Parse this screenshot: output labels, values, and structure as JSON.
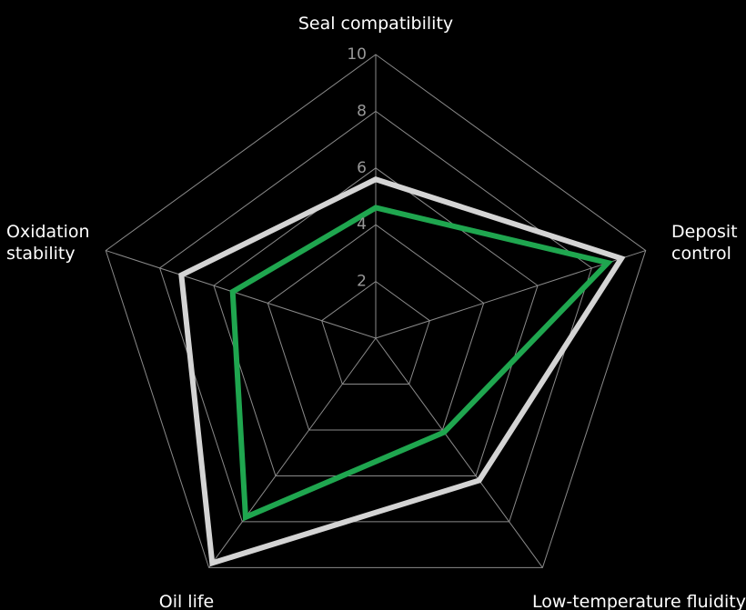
{
  "chart_data": {
    "type": "radar",
    "categories": [
      "Seal compatibility",
      "Deposit control",
      "Low-temperature fluidity",
      "Oil life",
      "Oxidation stability"
    ],
    "ylim": [
      0,
      10
    ],
    "yticks": [
      2,
      4,
      6,
      8,
      10
    ],
    "grid": true,
    "series": [
      {
        "color": "#d4d4d4",
        "values": [
          5.6,
          9.1,
          6.2,
          9.8,
          7.2
        ]
      },
      {
        "color": "#1fa64f",
        "values": [
          4.6,
          8.6,
          4.1,
          7.8,
          5.3
        ]
      }
    ]
  }
}
